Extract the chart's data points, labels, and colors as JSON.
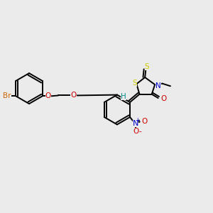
{
  "bg_color": "#ebebeb",
  "bond_color": "#000000",
  "bond_width": 1.4,
  "S_color": "#cccc00",
  "N_color": "#0000cc",
  "O_color": "#cc0000",
  "Br_color": "#cc6600",
  "H_color": "#008888",
  "figsize": [
    3.0,
    3.0
  ],
  "dpi": 100,
  "xlim": [
    0,
    10
  ],
  "ylim": [
    0,
    10
  ],
  "r_ring": 0.72,
  "r_benz": 0.7,
  "font_size": 7.5
}
